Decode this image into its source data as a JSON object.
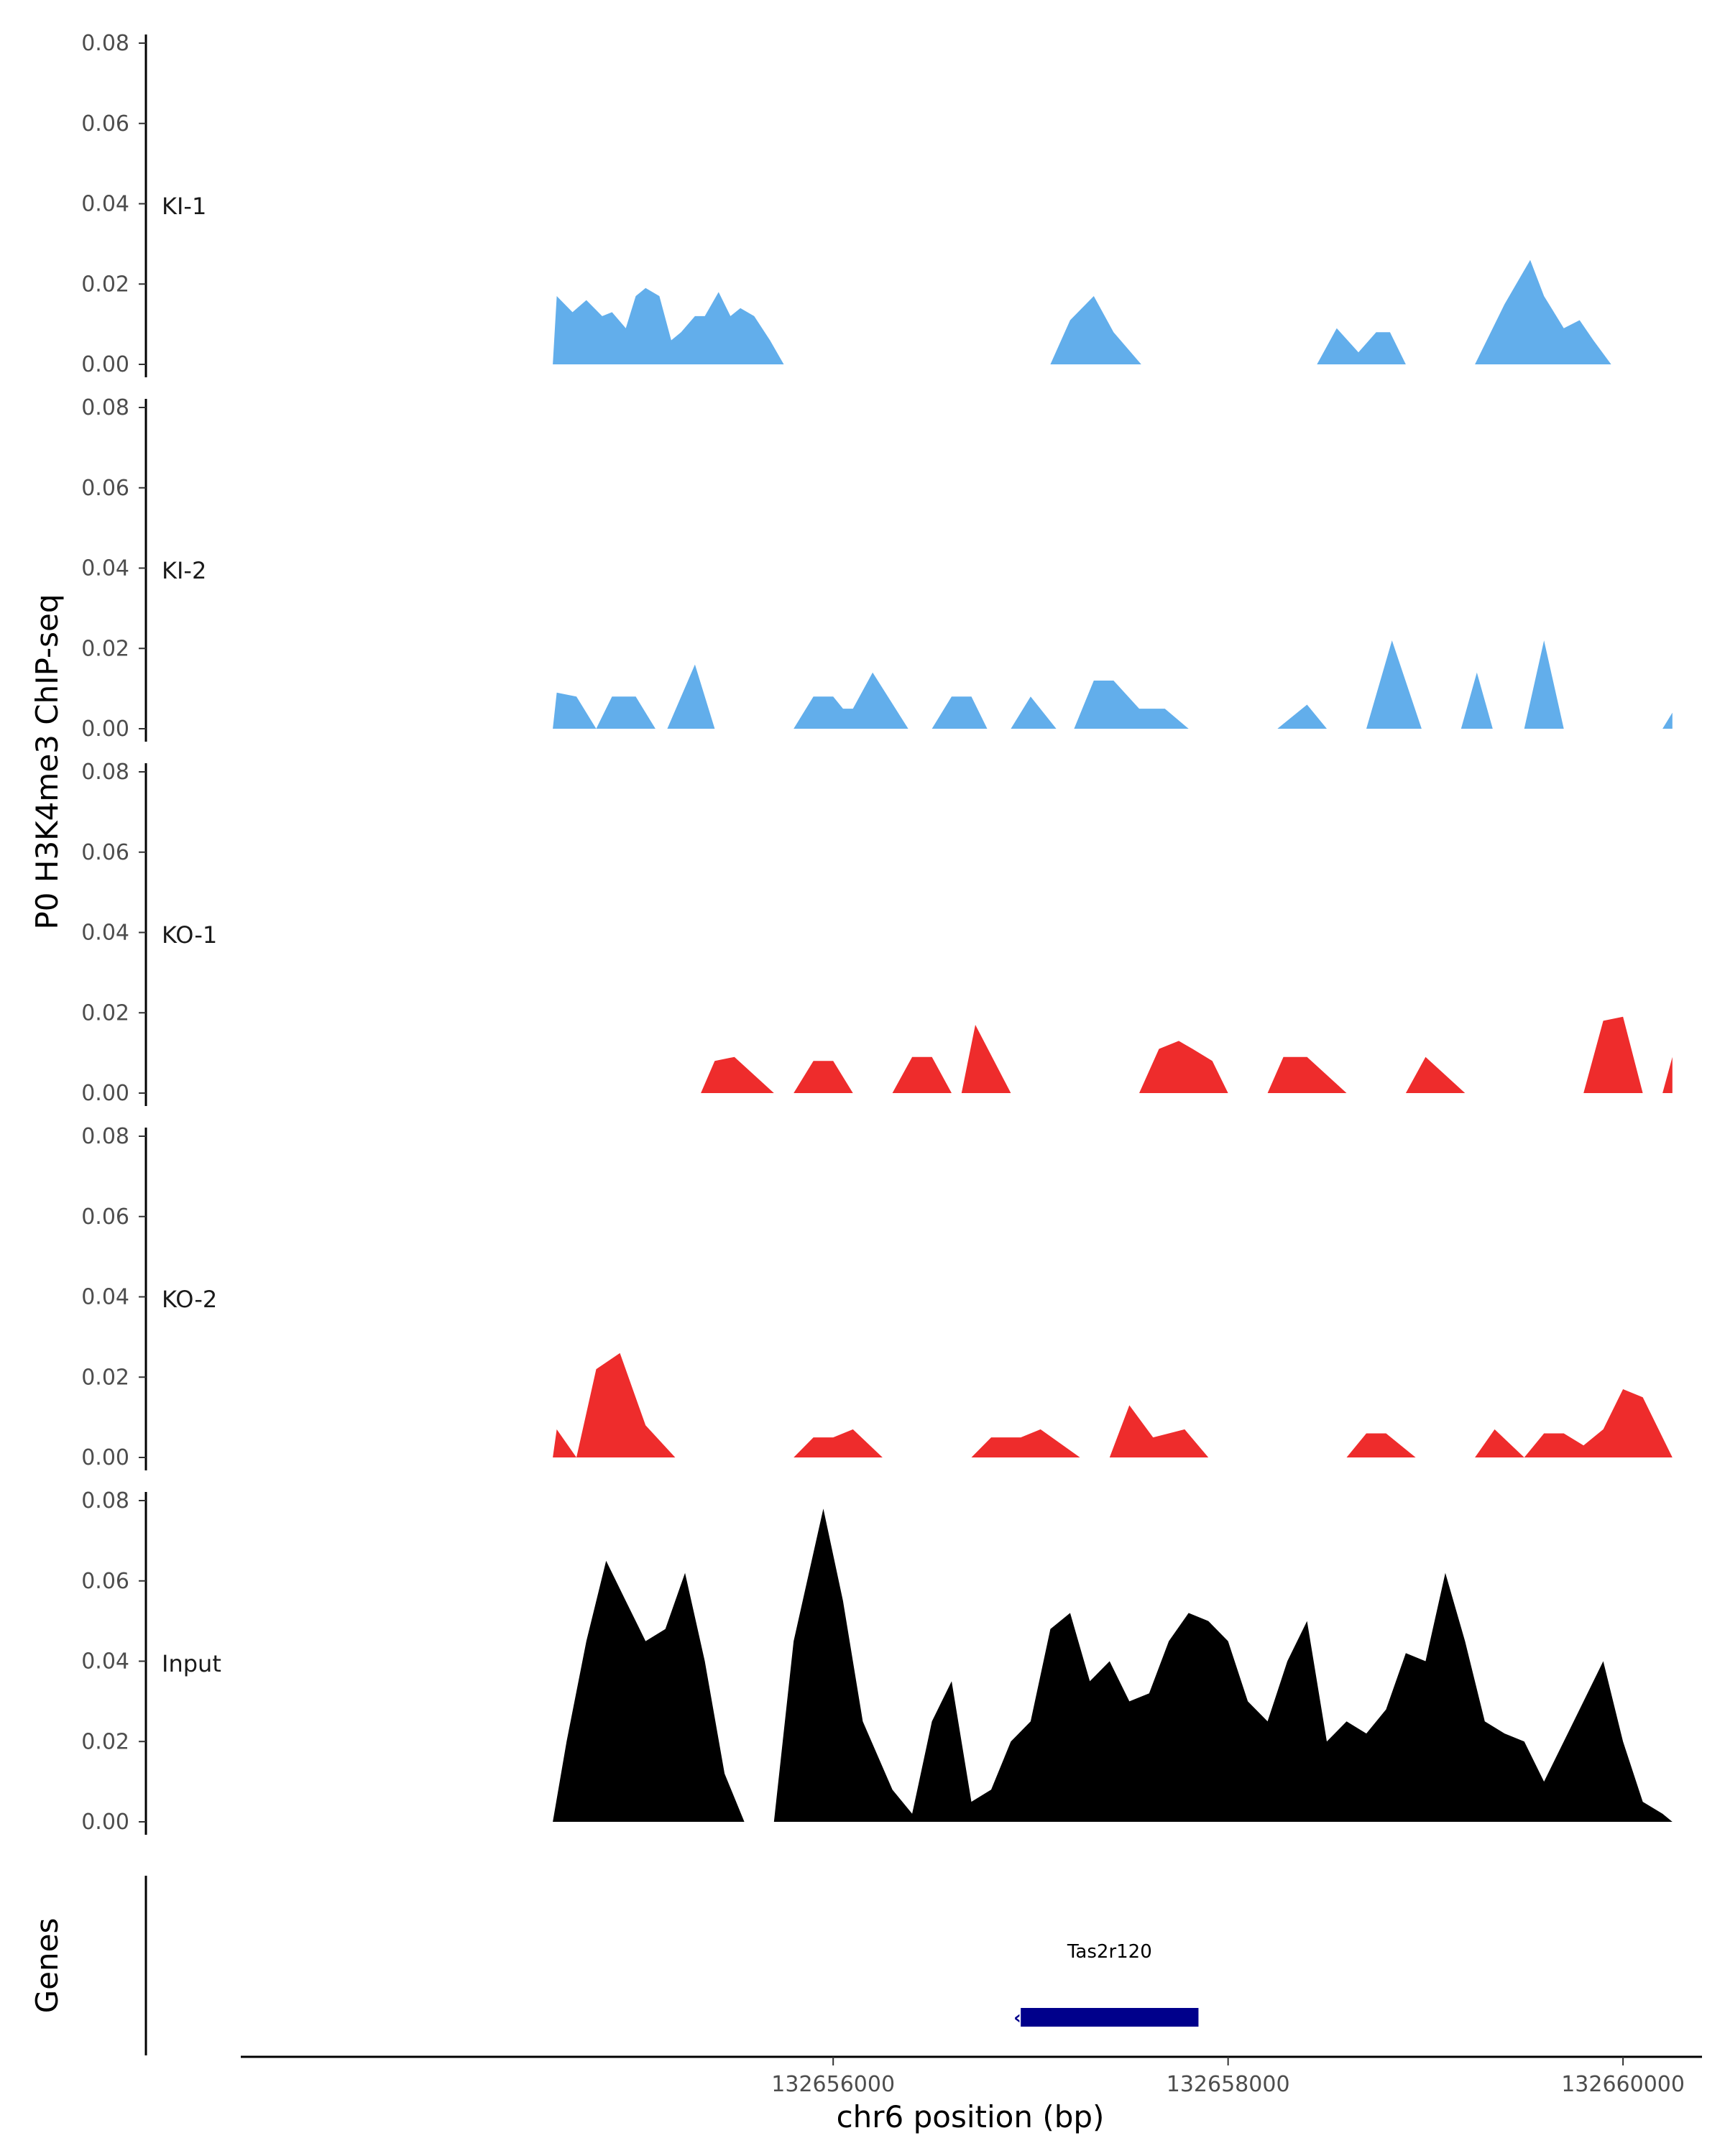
{
  "chart_data": {
    "type": "area",
    "ylabel": "P0 H3K4me3 ChIP-seq",
    "xlabel": "chr6 position (bp)",
    "genes_label": "Genes",
    "xlim": [
      132653000,
      132660400
    ],
    "ylim": [
      0,
      0.08
    ],
    "yticks": [
      0.0,
      0.02,
      0.04,
      0.06,
      0.08
    ],
    "ytick_labels": [
      "0.00",
      "0.02",
      "0.04",
      "0.06",
      "0.08"
    ],
    "xticks": [
      132656000,
      132658000,
      132660000
    ],
    "xtick_labels": [
      "132656000",
      "132658000",
      "132660000"
    ],
    "colors": {
      "KI": "#62aeeb",
      "KO": "#ee2c2c",
      "Input": "#000000",
      "gene": "#00008b"
    },
    "tracks": [
      {
        "name": "KI-1",
        "color": "#62aeeb",
        "x": [
          132654580,
          132654600,
          132654680,
          132654750,
          132654830,
          132654880,
          132654950,
          132655000,
          132655050,
          132655120,
          132655180,
          132655230,
          132655300,
          132655350,
          132655420,
          132655480,
          132655530,
          132655600,
          132655680,
          132655750,
          132655800,
          132655860,
          132655930,
          132655990,
          132656000,
          132657100,
          132657200,
          132657320,
          132657420,
          132657560,
          132658450,
          132658550,
          132658660,
          132658750,
          132658820,
          132658900,
          132659000,
          132659250,
          132659400,
          132659530,
          132659600,
          132659700,
          132659780,
          132659850,
          132659940
        ],
        "values": [
          0.0,
          0.017,
          0.013,
          0.016,
          0.012,
          0.013,
          0.009,
          0.017,
          0.019,
          0.017,
          0.006,
          0.008,
          0.012,
          0.012,
          0.018,
          0.012,
          0.014,
          0.012,
          0.006,
          0.0,
          0.0,
          0.0,
          0.0,
          0.0,
          0.0,
          0.0,
          0.011,
          0.017,
          0.008,
          0.0,
          0.0,
          0.009,
          0.003,
          0.008,
          0.008,
          0.0,
          0.0,
          0.0,
          0.015,
          0.026,
          0.017,
          0.009,
          0.011,
          0.006,
          0.0
        ]
      },
      {
        "name": "KI-2",
        "color": "#62aeeb",
        "x": [
          132654580,
          132654600,
          132654700,
          132654800,
          132654880,
          132655000,
          132655100,
          132655160,
          132655300,
          132655400,
          132655500,
          132655800,
          132655900,
          132656000,
          132656050,
          132656100,
          132656200,
          132656380,
          132656500,
          132656600,
          132656700,
          132656780,
          132656900,
          132657000,
          132657130,
          132657220,
          132657320,
          132657420,
          132657550,
          132657680,
          132657800,
          132657900,
          132658050,
          132658250,
          132658400,
          132658500,
          132658600,
          132658700,
          132658830,
          132658980,
          132659100,
          132659180,
          132659260,
          132659340,
          132659450,
          132659500,
          132659600,
          132659700,
          132659800,
          132659900,
          132660000,
          132660200,
          132660250
        ],
        "values": [
          0.0,
          0.009,
          0.008,
          0.0,
          0.008,
          0.008,
          0.0,
          0.0,
          0.016,
          0.0,
          0.0,
          0.0,
          0.008,
          0.008,
          0.005,
          0.005,
          0.014,
          0.0,
          0.0,
          0.008,
          0.008,
          0.0,
          0.0,
          0.008,
          0.0,
          0.0,
          0.012,
          0.012,
          0.005,
          0.005,
          0.0,
          0.0,
          0.0,
          0.0,
          0.006,
          0.0,
          0.0,
          0.0,
          0.022,
          0.0,
          0.0,
          0.0,
          0.014,
          0.0,
          0.0,
          0.0,
          0.022,
          0.0,
          0.0,
          0.0,
          0.0,
          0.0,
          0.004
        ]
      },
      {
        "name": "KO-1",
        "color": "#ee2c2c",
        "x": [
          132655330,
          132655400,
          132655500,
          132655700,
          132655800,
          132655900,
          132656000,
          132656100,
          132656300,
          132656400,
          132656500,
          132656600,
          132656650,
          132656720,
          132656900,
          132657000,
          132657550,
          132657650,
          132657750,
          132657820,
          132657920,
          132658000,
          132658200,
          132658280,
          132658400,
          132658600,
          132658900,
          132659000,
          132659200,
          132659800,
          132659900,
          132660000,
          132660100,
          132660200,
          132660250
        ],
        "values": [
          0.0,
          0.008,
          0.009,
          0.0,
          0.0,
          0.008,
          0.008,
          0.0,
          0.0,
          0.009,
          0.009,
          0.0,
          0.0,
          0.017,
          0.0,
          0.0,
          0.0,
          0.011,
          0.013,
          0.011,
          0.008,
          0.0,
          0.0,
          0.009,
          0.009,
          0.0,
          0.0,
          0.009,
          0.0,
          0.0,
          0.018,
          0.019,
          0.0,
          0.0,
          0.009
        ]
      },
      {
        "name": "KO-2",
        "color": "#ee2c2c",
        "x": [
          132654580,
          132654600,
          132654700,
          132654800,
          132654920,
          132655050,
          132655200,
          132655300,
          132655800,
          132655900,
          132656000,
          132656100,
          132656250,
          132656700,
          132656800,
          132656950,
          132657050,
          132657250,
          132657400,
          132657500,
          132657620,
          132657780,
          132657900,
          132658050,
          132658600,
          132658700,
          132658800,
          132658950,
          132659250,
          132659350,
          132659500,
          132659600,
          132659700,
          132659800,
          132659900,
          132660000,
          132660100,
          132660250
        ],
        "values": [
          0.0,
          0.007,
          0.0,
          0.022,
          0.026,
          0.008,
          0.0,
          0.0,
          0.0,
          0.005,
          0.005,
          0.007,
          0.0,
          0.0,
          0.005,
          0.005,
          0.007,
          0.0,
          0.0,
          0.013,
          0.005,
          0.007,
          0.0,
          0.0,
          0.0,
          0.006,
          0.006,
          0.0,
          0.0,
          0.007,
          0.0,
          0.006,
          0.006,
          0.003,
          0.007,
          0.017,
          0.015,
          0.0
        ]
      },
      {
        "name": "Input",
        "color": "#000000",
        "x": [
          132654580,
          132654650,
          132654750,
          132654850,
          132654950,
          132655050,
          132655150,
          132655250,
          132655350,
          132655450,
          132655550,
          132655650,
          132655700,
          132655800,
          132655950,
          132656050,
          132656150,
          132656300,
          132656400,
          132656500,
          132656600,
          132656700,
          132656800,
          132656900,
          132657000,
          132657100,
          132657200,
          132657300,
          132657400,
          132657500,
          132657600,
          132657700,
          132657800,
          132657900,
          132658000,
          132658100,
          132658200,
          132658300,
          132658400,
          132658500,
          132658600,
          132658700,
          132658800,
          132658900,
          132659000,
          132659100,
          132659200,
          132659300,
          132659400,
          132659500,
          132659600,
          132659700,
          132659800,
          132659900,
          132660000,
          132660100,
          132660200,
          132660250
        ],
        "values": [
          0.0,
          0.02,
          0.045,
          0.065,
          0.055,
          0.045,
          0.048,
          0.062,
          0.04,
          0.012,
          0.0,
          0.0,
          0.0,
          0.045,
          0.078,
          0.055,
          0.025,
          0.008,
          0.002,
          0.025,
          0.035,
          0.005,
          0.008,
          0.02,
          0.025,
          0.048,
          0.052,
          0.035,
          0.04,
          0.03,
          0.032,
          0.045,
          0.052,
          0.05,
          0.045,
          0.03,
          0.025,
          0.04,
          0.05,
          0.02,
          0.025,
          0.022,
          0.028,
          0.042,
          0.04,
          0.062,
          0.045,
          0.025,
          0.022,
          0.02,
          0.01,
          0.02,
          0.03,
          0.04,
          0.02,
          0.005,
          0.002,
          0.0
        ]
      }
    ],
    "gene": {
      "name": "Tas2r120",
      "start": 132656950,
      "end": 132657850,
      "strand": "-"
    }
  }
}
